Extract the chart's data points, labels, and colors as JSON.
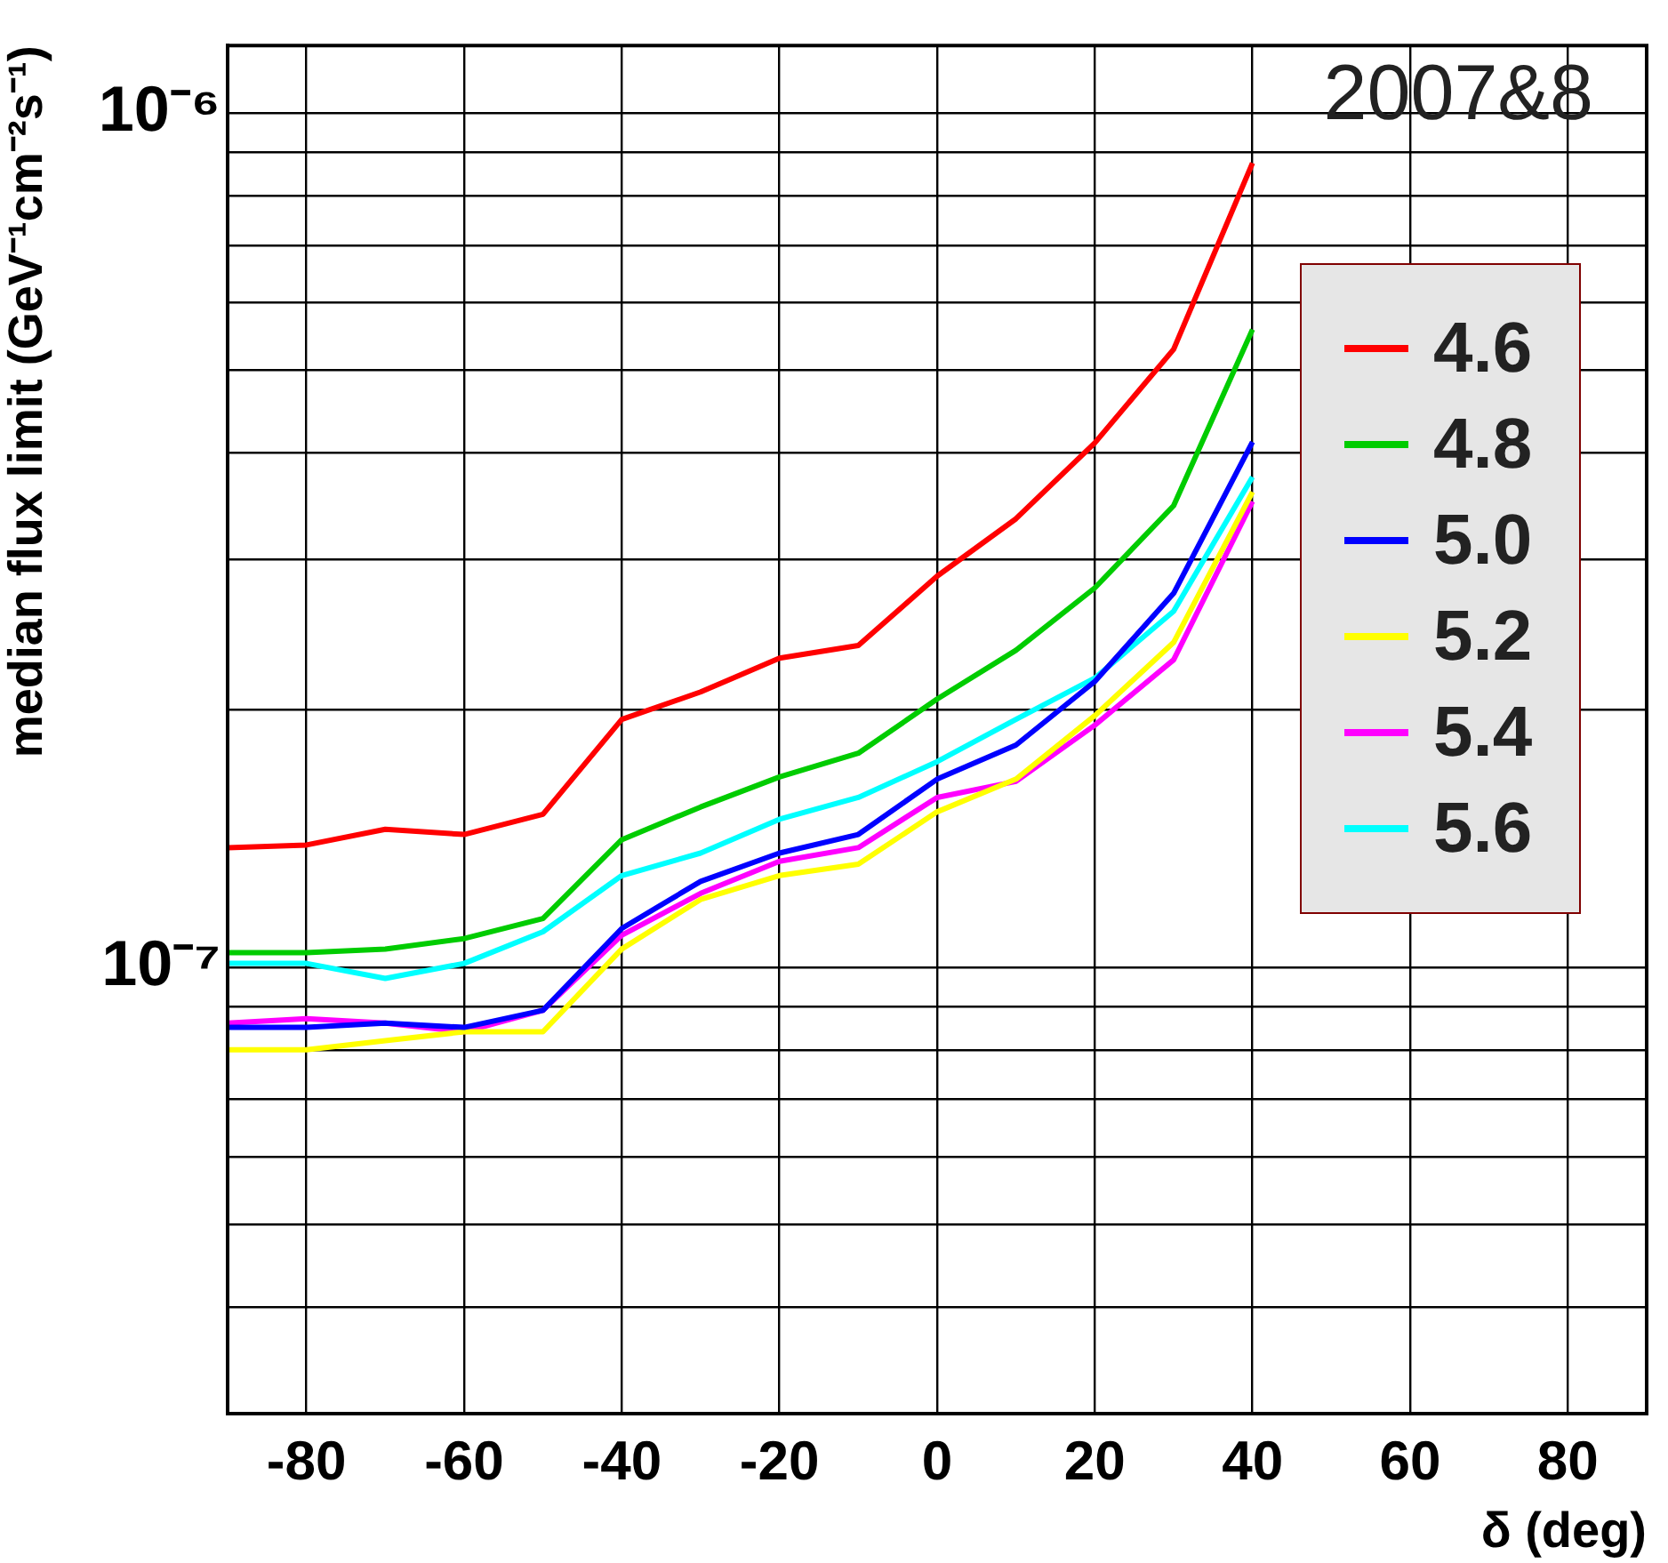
{
  "chart_data": {
    "type": "line",
    "xlabel": "δ (deg)",
    "ylabel": "median flux limit (GeV⁻¹cm⁻²s⁻¹)",
    "annotations": [
      "2007&8"
    ],
    "x": [
      -90,
      -80,
      -70,
      -60,
      -50,
      -40,
      -30,
      -20,
      -10,
      0,
      10,
      20,
      30,
      40
    ],
    "series": [
      {
        "name": "4.6",
        "color": "#ff0000",
        "values": [
          1.38e-07,
          1.39e-07,
          1.45e-07,
          1.43e-07,
          1.51e-07,
          1.95e-07,
          2.1e-07,
          2.3e-07,
          2.38e-07,
          2.87e-07,
          3.35e-07,
          4.11e-07,
          5.29e-07,
          8.74e-07
        ]
      },
      {
        "name": "4.8",
        "color": "#00cc00",
        "values": [
          1.04e-07,
          1.04e-07,
          1.05e-07,
          1.08e-07,
          1.14e-07,
          1.41e-07,
          1.54e-07,
          1.67e-07,
          1.78e-07,
          2.06e-07,
          2.35e-07,
          2.78e-07,
          3.47e-07,
          5.58e-07
        ]
      },
      {
        "name": "5.0",
        "color": "#0000ff",
        "values": [
          8.5e-08,
          8.5e-08,
          8.6e-08,
          8.5e-08,
          8.9e-08,
          1.11e-07,
          1.26e-07,
          1.36e-07,
          1.43e-07,
          1.66e-07,
          1.82e-07,
          2.16e-07,
          2.74e-07,
          4.12e-07
        ]
      },
      {
        "name": "5.2",
        "color": "#ffff00",
        "values": [
          8e-08,
          8e-08,
          8.2e-08,
          8.4e-08,
          8.4e-08,
          1.05e-07,
          1.2e-07,
          1.28e-07,
          1.32e-07,
          1.52e-07,
          1.66e-07,
          1.97e-07,
          2.4e-07,
          3.6e-07
        ]
      },
      {
        "name": "5.4",
        "color": "#ff00ff",
        "values": [
          8.6e-08,
          8.7e-08,
          8.6e-08,
          8.4e-08,
          8.9e-08,
          1.09e-07,
          1.22e-07,
          1.33e-07,
          1.38e-07,
          1.58e-07,
          1.65e-07,
          1.92e-07,
          2.29e-07,
          3.51e-07
        ]
      },
      {
        "name": "5.6",
        "color": "#00ffff",
        "values": [
          1.01e-07,
          1.01e-07,
          9.7e-08,
          1.01e-07,
          1.1e-07,
          1.28e-07,
          1.36e-07,
          1.49e-07,
          1.58e-07,
          1.74e-07,
          1.95e-07,
          2.18e-07,
          2.61e-07,
          3.75e-07
        ]
      }
    ],
    "xlim": [
      -90,
      90
    ],
    "xticks": [
      -80,
      -60,
      -40,
      -20,
      0,
      20,
      40,
      60,
      80
    ],
    "ylim": [
      3e-08,
      1.2e-06
    ],
    "yticks": [
      {
        "value": 4e-08,
        "label": null
      },
      {
        "value": 5e-08,
        "label": null
      },
      {
        "value": 6e-08,
        "label": null
      },
      {
        "value": 7e-08,
        "label": null
      },
      {
        "value": 8e-08,
        "label": null
      },
      {
        "value": 9e-08,
        "label": null
      },
      {
        "value": 1e-07,
        "label": "10⁻⁷"
      },
      {
        "value": 2e-07,
        "label": null
      },
      {
        "value": 3e-07,
        "label": null
      },
      {
        "value": 4e-07,
        "label": null
      },
      {
        "value": 5e-07,
        "label": null
      },
      {
        "value": 6e-07,
        "label": null
      },
      {
        "value": 7e-07,
        "label": null
      },
      {
        "value": 8e-07,
        "label": null
      },
      {
        "value": 9e-07,
        "label": null
      },
      {
        "value": 1e-06,
        "label": "10⁻⁶"
      }
    ],
    "log": true,
    "grid": true,
    "legend": "right",
    "marker": "none",
    "line_style": "solid"
  }
}
